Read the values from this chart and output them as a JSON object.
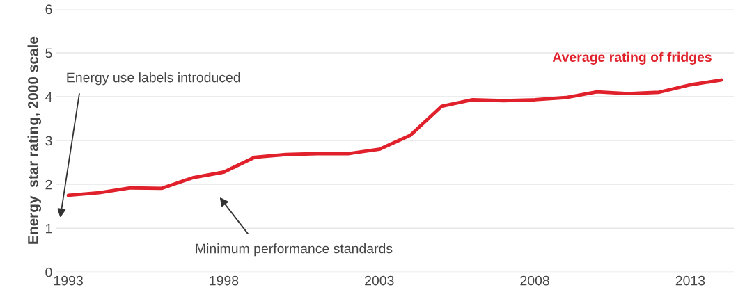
{
  "chart_data": {
    "type": "line",
    "ylabel": "Energy  star rating, 2000 scale",
    "x": [
      1993,
      1994,
      1995,
      1996,
      1997,
      1998,
      1999,
      2000,
      2001,
      2002,
      2003,
      2004,
      2005,
      2006,
      2007,
      2008,
      2009,
      2010,
      2011,
      2012,
      2013,
      2014
    ],
    "series": [
      {
        "name": "Average rating of fridges",
        "color": "#e0202a",
        "values": [
          1.75,
          1.81,
          1.92,
          1.91,
          2.15,
          2.28,
          2.62,
          2.68,
          2.7,
          2.7,
          2.8,
          3.12,
          3.78,
          3.93,
          3.91,
          3.93,
          3.98,
          4.11,
          4.07,
          4.1,
          4.27,
          4.38
        ]
      }
    ],
    "xlim": [
      1992.6,
      2014.4
    ],
    "xticks": [
      1993,
      1998,
      2003,
      2008,
      2013
    ],
    "ylim": [
      0,
      6
    ],
    "yticks": [
      0,
      1,
      2,
      3,
      4,
      5,
      6
    ],
    "grid": "y",
    "marker": "none",
    "line_style": "solid",
    "annotations": [
      "Energy use labels introduced",
      "Minimum performance standards"
    ]
  }
}
